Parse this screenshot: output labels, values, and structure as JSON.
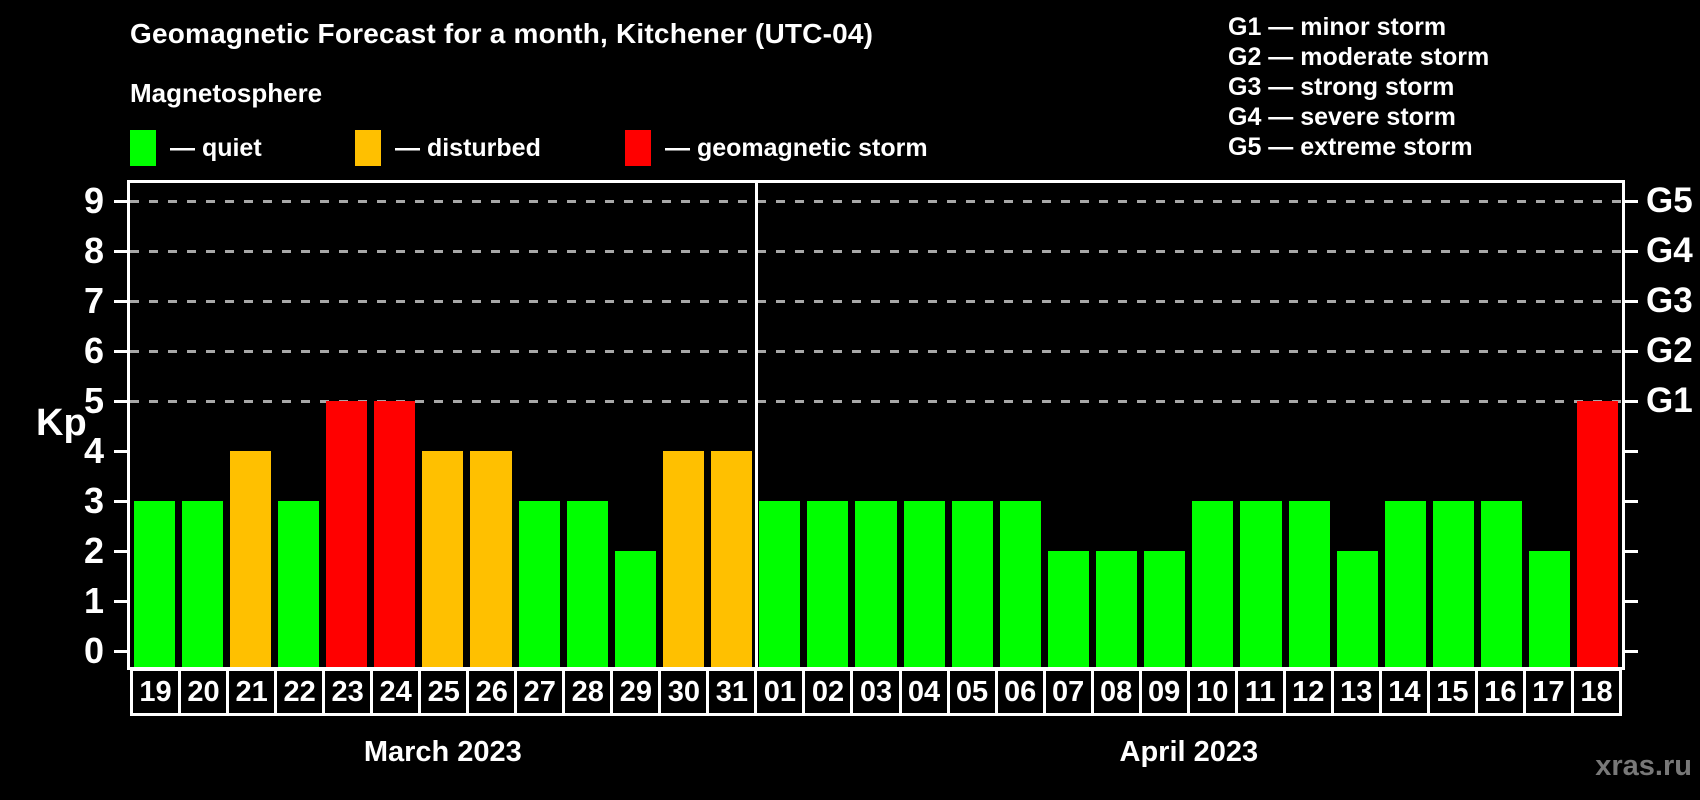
{
  "header": {
    "title": "Geomagnetic Forecast for a month, Kitchener (UTC-04)",
    "subtitle": "Magnetosphere"
  },
  "legend": {
    "items": [
      {
        "name": "quiet",
        "label": "— quiet",
        "color": "#00ff00"
      },
      {
        "name": "disturbed",
        "label": "— disturbed",
        "color": "#ffc000"
      },
      {
        "name": "storm",
        "label": "— geomagnetic storm",
        "color": "#ff0000"
      }
    ]
  },
  "g_scale_legend": {
    "items": [
      "G1 — minor storm",
      "G2 — moderate storm",
      "G3 — strong storm",
      "G4 — severe storm",
      "G5 — extreme storm"
    ]
  },
  "watermark": "xras.ru",
  "chart_data": {
    "type": "bar",
    "title": "Geomagnetic Forecast for a month, Kitchener (UTC-04)",
    "ylabel": "Kp",
    "ylim": [
      0,
      9
    ],
    "y_ticks": [
      0,
      1,
      2,
      3,
      4,
      5,
      6,
      7,
      8,
      9
    ],
    "gridlines_at": [
      5,
      6,
      7,
      8,
      9
    ],
    "grid": "dashed horizontal at G-storm levels only",
    "right_axis_labels": [
      {
        "kp": 5,
        "label": "G1"
      },
      {
        "kp": 6,
        "label": "G2"
      },
      {
        "kp": 7,
        "label": "G3"
      },
      {
        "kp": 8,
        "label": "G4"
      },
      {
        "kp": 9,
        "label": "G5"
      }
    ],
    "status_colors": {
      "quiet": "#00ff00",
      "disturbed": "#ffc000",
      "storm": "#ff0000"
    },
    "months": [
      {
        "label": "March 2023",
        "days": 13
      },
      {
        "label": "April 2023",
        "days": 18
      }
    ],
    "bars": [
      {
        "date": "19",
        "month": "March 2023",
        "kp": 3,
        "status": "quiet"
      },
      {
        "date": "20",
        "month": "March 2023",
        "kp": 3,
        "status": "quiet"
      },
      {
        "date": "21",
        "month": "March 2023",
        "kp": 4,
        "status": "disturbed"
      },
      {
        "date": "22",
        "month": "March 2023",
        "kp": 3,
        "status": "quiet"
      },
      {
        "date": "23",
        "month": "March 2023",
        "kp": 5,
        "status": "storm"
      },
      {
        "date": "24",
        "month": "March 2023",
        "kp": 5,
        "status": "storm"
      },
      {
        "date": "25",
        "month": "March 2023",
        "kp": 4,
        "status": "disturbed"
      },
      {
        "date": "26",
        "month": "March 2023",
        "kp": 4,
        "status": "disturbed"
      },
      {
        "date": "27",
        "month": "March 2023",
        "kp": 3,
        "status": "quiet"
      },
      {
        "date": "28",
        "month": "March 2023",
        "kp": 3,
        "status": "quiet"
      },
      {
        "date": "29",
        "month": "March 2023",
        "kp": 2,
        "status": "quiet"
      },
      {
        "date": "30",
        "month": "March 2023",
        "kp": 4,
        "status": "disturbed"
      },
      {
        "date": "31",
        "month": "March 2023",
        "kp": 4,
        "status": "disturbed"
      },
      {
        "date": "01",
        "month": "April 2023",
        "kp": 3,
        "status": "quiet"
      },
      {
        "date": "02",
        "month": "April 2023",
        "kp": 3,
        "status": "quiet"
      },
      {
        "date": "03",
        "month": "April 2023",
        "kp": 3,
        "status": "quiet"
      },
      {
        "date": "04",
        "month": "April 2023",
        "kp": 3,
        "status": "quiet"
      },
      {
        "date": "05",
        "month": "April 2023",
        "kp": 3,
        "status": "quiet"
      },
      {
        "date": "06",
        "month": "April 2023",
        "kp": 3,
        "status": "quiet"
      },
      {
        "date": "07",
        "month": "April 2023",
        "kp": 2,
        "status": "quiet"
      },
      {
        "date": "08",
        "month": "April 2023",
        "kp": 2,
        "status": "quiet"
      },
      {
        "date": "09",
        "month": "April 2023",
        "kp": 2,
        "status": "quiet"
      },
      {
        "date": "10",
        "month": "April 2023",
        "kp": 3,
        "status": "quiet"
      },
      {
        "date": "11",
        "month": "April 2023",
        "kp": 3,
        "status": "quiet"
      },
      {
        "date": "12",
        "month": "April 2023",
        "kp": 3,
        "status": "quiet"
      },
      {
        "date": "13",
        "month": "April 2023",
        "kp": 2,
        "status": "quiet"
      },
      {
        "date": "14",
        "month": "April 2023",
        "kp": 3,
        "status": "quiet"
      },
      {
        "date": "15",
        "month": "April 2023",
        "kp": 3,
        "status": "quiet"
      },
      {
        "date": "16",
        "month": "April 2023",
        "kp": 3,
        "status": "quiet"
      },
      {
        "date": "17",
        "month": "April 2023",
        "kp": 2,
        "status": "quiet"
      },
      {
        "date": "18",
        "month": "April 2023",
        "kp": 5,
        "status": "storm"
      }
    ]
  }
}
